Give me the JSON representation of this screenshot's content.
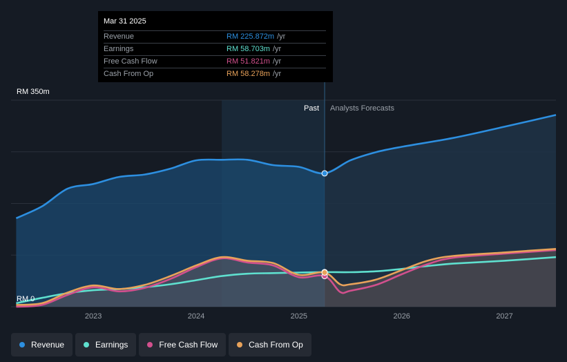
{
  "chart_data": {
    "type": "line",
    "y_top_label": "RM 350m",
    "y_zero_label": "RM 0",
    "ylim": [
      0,
      350
    ],
    "x_ticks": [
      {
        "label": "2023",
        "x": 2023
      },
      {
        "label": "2024",
        "x": 2024
      },
      {
        "label": "2025",
        "x": 2025
      },
      {
        "label": "2026",
        "x": 2026
      },
      {
        "label": "2027",
        "x": 2027
      }
    ],
    "xlim": [
      2022.2,
      2027.5
    ],
    "forecast_start": 2025.25,
    "forecast_shade_start": 2024.25,
    "past_label": "Past",
    "forecast_label": "Analysts Forecasts",
    "series": [
      {
        "name": "Revenue",
        "color": "#2d8fe0",
        "fill": true,
        "points": [
          [
            2022.25,
            150
          ],
          [
            2022.5,
            170
          ],
          [
            2022.75,
            200
          ],
          [
            2023.0,
            208
          ],
          [
            2023.25,
            220
          ],
          [
            2023.5,
            224
          ],
          [
            2023.75,
            234
          ],
          [
            2024.0,
            248
          ],
          [
            2024.25,
            249
          ],
          [
            2024.5,
            249
          ],
          [
            2024.75,
            240
          ],
          [
            2025.0,
            237
          ],
          [
            2025.25,
            226
          ],
          [
            2025.5,
            248
          ],
          [
            2025.75,
            262
          ],
          [
            2026.0,
            271
          ],
          [
            2026.5,
            286
          ],
          [
            2027.0,
            305
          ],
          [
            2027.5,
            325
          ]
        ]
      },
      {
        "name": "Earnings",
        "color": "#5fe0cf",
        "fill": false,
        "points": [
          [
            2022.25,
            6
          ],
          [
            2022.5,
            15
          ],
          [
            2022.75,
            23
          ],
          [
            2023.0,
            28
          ],
          [
            2023.25,
            30
          ],
          [
            2023.5,
            33
          ],
          [
            2023.75,
            38
          ],
          [
            2024.0,
            45
          ],
          [
            2024.25,
            52
          ],
          [
            2024.5,
            56
          ],
          [
            2024.75,
            57
          ],
          [
            2025.0,
            58
          ],
          [
            2025.25,
            58.7
          ],
          [
            2025.5,
            58.5
          ],
          [
            2025.75,
            60
          ],
          [
            2026.0,
            64
          ],
          [
            2026.25,
            69
          ],
          [
            2026.5,
            73
          ],
          [
            2027.0,
            78
          ],
          [
            2027.5,
            84
          ]
        ]
      },
      {
        "name": "Free Cash Flow",
        "color": "#d2508d",
        "fill": false,
        "points": [
          [
            2022.25,
            0
          ],
          [
            2022.5,
            3
          ],
          [
            2022.75,
            20
          ],
          [
            2023.0,
            33
          ],
          [
            2023.25,
            26
          ],
          [
            2023.5,
            32
          ],
          [
            2023.75,
            47
          ],
          [
            2024.0,
            67
          ],
          [
            2024.25,
            82
          ],
          [
            2024.5,
            75
          ],
          [
            2024.75,
            70
          ],
          [
            2025.0,
            50
          ],
          [
            2025.25,
            52
          ],
          [
            2025.4,
            25
          ],
          [
            2025.5,
            27
          ],
          [
            2025.75,
            37
          ],
          [
            2026.0,
            55
          ],
          [
            2026.25,
            72
          ],
          [
            2026.5,
            83
          ],
          [
            2027.0,
            90
          ],
          [
            2027.5,
            96
          ]
        ]
      },
      {
        "name": "Cash From Op",
        "color": "#e8a25a",
        "fill": false,
        "points": [
          [
            2022.25,
            3
          ],
          [
            2022.5,
            6
          ],
          [
            2022.75,
            24
          ],
          [
            2023.0,
            36
          ],
          [
            2023.25,
            30
          ],
          [
            2023.5,
            37
          ],
          [
            2023.75,
            52
          ],
          [
            2024.0,
            70
          ],
          [
            2024.25,
            84
          ],
          [
            2024.5,
            78
          ],
          [
            2024.75,
            74
          ],
          [
            2025.0,
            54
          ],
          [
            2025.25,
            58
          ],
          [
            2025.4,
            38
          ],
          [
            2025.5,
            38
          ],
          [
            2025.75,
            46
          ],
          [
            2026.0,
            62
          ],
          [
            2026.25,
            78
          ],
          [
            2026.5,
            86
          ],
          [
            2027.0,
            92
          ],
          [
            2027.5,
            98
          ]
        ]
      }
    ]
  },
  "tooltip": {
    "date": "Mar 31 2025",
    "rows": [
      {
        "name": "Revenue",
        "value": "RM 225.872m",
        "unit": "/yr",
        "color": "#2d8fe0"
      },
      {
        "name": "Earnings",
        "value": "RM 58.703m",
        "unit": "/yr",
        "color": "#5fe0cf"
      },
      {
        "name": "Free Cash Flow",
        "value": "RM 51.821m",
        "unit": "/yr",
        "color": "#d2508d"
      },
      {
        "name": "Cash From Op",
        "value": "RM 58.278m",
        "unit": "/yr",
        "color": "#e8a25a"
      }
    ]
  },
  "legend": [
    {
      "label": "Revenue",
      "color": "#2d8fe0"
    },
    {
      "label": "Earnings",
      "color": "#5fe0cf"
    },
    {
      "label": "Free Cash Flow",
      "color": "#d2508d"
    },
    {
      "label": "Cash From Op",
      "color": "#e8a25a"
    }
  ]
}
